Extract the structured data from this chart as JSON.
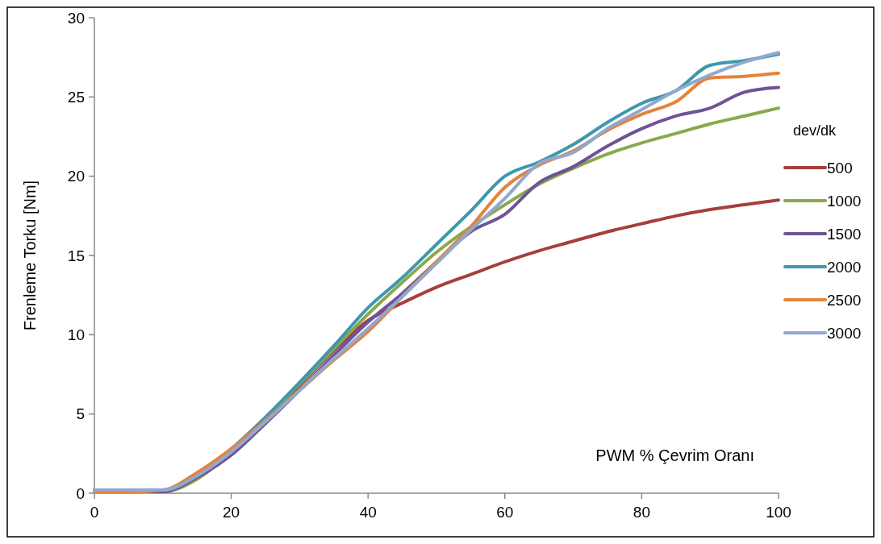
{
  "chart_data": {
    "type": "line",
    "xlabel": "PWM % Çevrim Oranı",
    "ylabel": "Frenleme Torku [Nm]",
    "legend_title": "dev/dk",
    "legend": "right",
    "xlim": [
      0,
      100
    ],
    "xticks": [
      0,
      20,
      40,
      60,
      80,
      100
    ],
    "ylim": [
      0,
      30
    ],
    "yticks": [
      0,
      5,
      10,
      15,
      20,
      25,
      30
    ],
    "grid": false,
    "marker": "none",
    "line_style": "solid",
    "x": [
      0,
      5,
      10,
      15,
      20,
      25,
      30,
      35,
      40,
      45,
      50,
      55,
      60,
      65,
      70,
      75,
      80,
      85,
      90,
      95,
      100
    ],
    "series": [
      {
        "name": "500",
        "color": "#a5403d",
        "values": [
          0.2,
          0.2,
          0.1,
          0.9,
          2.6,
          4.6,
          6.8,
          9.0,
          10.9,
          12.0,
          13.0,
          13.8,
          14.6,
          15.3,
          15.9,
          16.5,
          17.0,
          17.5,
          17.9,
          18.2,
          18.5
        ]
      },
      {
        "name": "1000",
        "color": "#8aa84d",
        "values": [
          0.2,
          0.2,
          0.1,
          0.9,
          2.7,
          4.7,
          6.9,
          9.1,
          11.3,
          13.3,
          15.2,
          16.8,
          18.2,
          19.5,
          20.5,
          21.4,
          22.1,
          22.7,
          23.3,
          23.8,
          24.3
        ]
      },
      {
        "name": "1500",
        "color": "#6e5396",
        "values": [
          0.2,
          0.2,
          0.1,
          1.0,
          2.4,
          4.4,
          6.5,
          8.7,
          10.8,
          12.6,
          14.6,
          16.5,
          17.6,
          19.6,
          20.6,
          21.9,
          23.0,
          23.8,
          24.3,
          25.3,
          25.6
        ]
      },
      {
        "name": "2000",
        "color": "#3d98ae",
        "values": [
          0.2,
          0.2,
          0.2,
          1.1,
          2.8,
          4.8,
          7.0,
          9.3,
          11.7,
          13.6,
          15.7,
          17.8,
          20.0,
          20.9,
          22.0,
          23.4,
          24.6,
          25.4,
          27.0,
          27.3,
          27.7
        ]
      },
      {
        "name": "2500",
        "color": "#e2843a",
        "values": [
          0.1,
          0.1,
          0.2,
          1.3,
          2.8,
          4.6,
          6.5,
          8.4,
          10.2,
          12.4,
          14.6,
          16.8,
          19.3,
          20.7,
          21.6,
          22.9,
          23.9,
          24.7,
          26.2,
          26.3,
          26.5
        ]
      },
      {
        "name": "3000",
        "color": "#91a8cf",
        "values": [
          0.2,
          0.2,
          0.2,
          1.1,
          2.6,
          4.5,
          6.5,
          8.5,
          10.4,
          12.4,
          14.5,
          16.6,
          18.6,
          20.8,
          21.5,
          23.0,
          24.2,
          25.4,
          26.4,
          27.2,
          27.8
        ]
      }
    ]
  }
}
